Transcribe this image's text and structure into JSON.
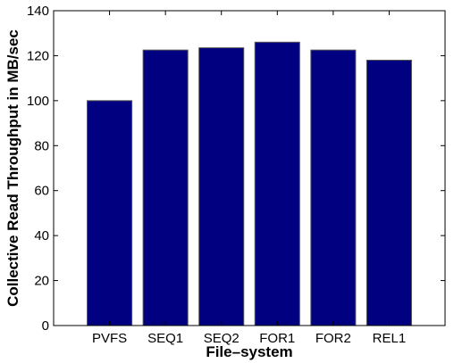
{
  "chart_data": {
    "type": "bar",
    "title": "",
    "xlabel": "File–system",
    "ylabel": "Collective Read Throughput in MB/sec",
    "categories": [
      "PVFS",
      "SEQ1",
      "SEQ2",
      "FOR1",
      "FOR2",
      "REL1"
    ],
    "values": [
      100,
      122.5,
      123.5,
      126,
      122.5,
      118
    ],
    "ylim": [
      0,
      140
    ],
    "yticks": [
      0,
      20,
      40,
      60,
      80,
      100,
      120,
      140
    ],
    "grid": false,
    "legend": "none",
    "colors": {
      "bar_fill": "#000080",
      "bar_edge": "#555555",
      "axis": "#000000"
    }
  }
}
